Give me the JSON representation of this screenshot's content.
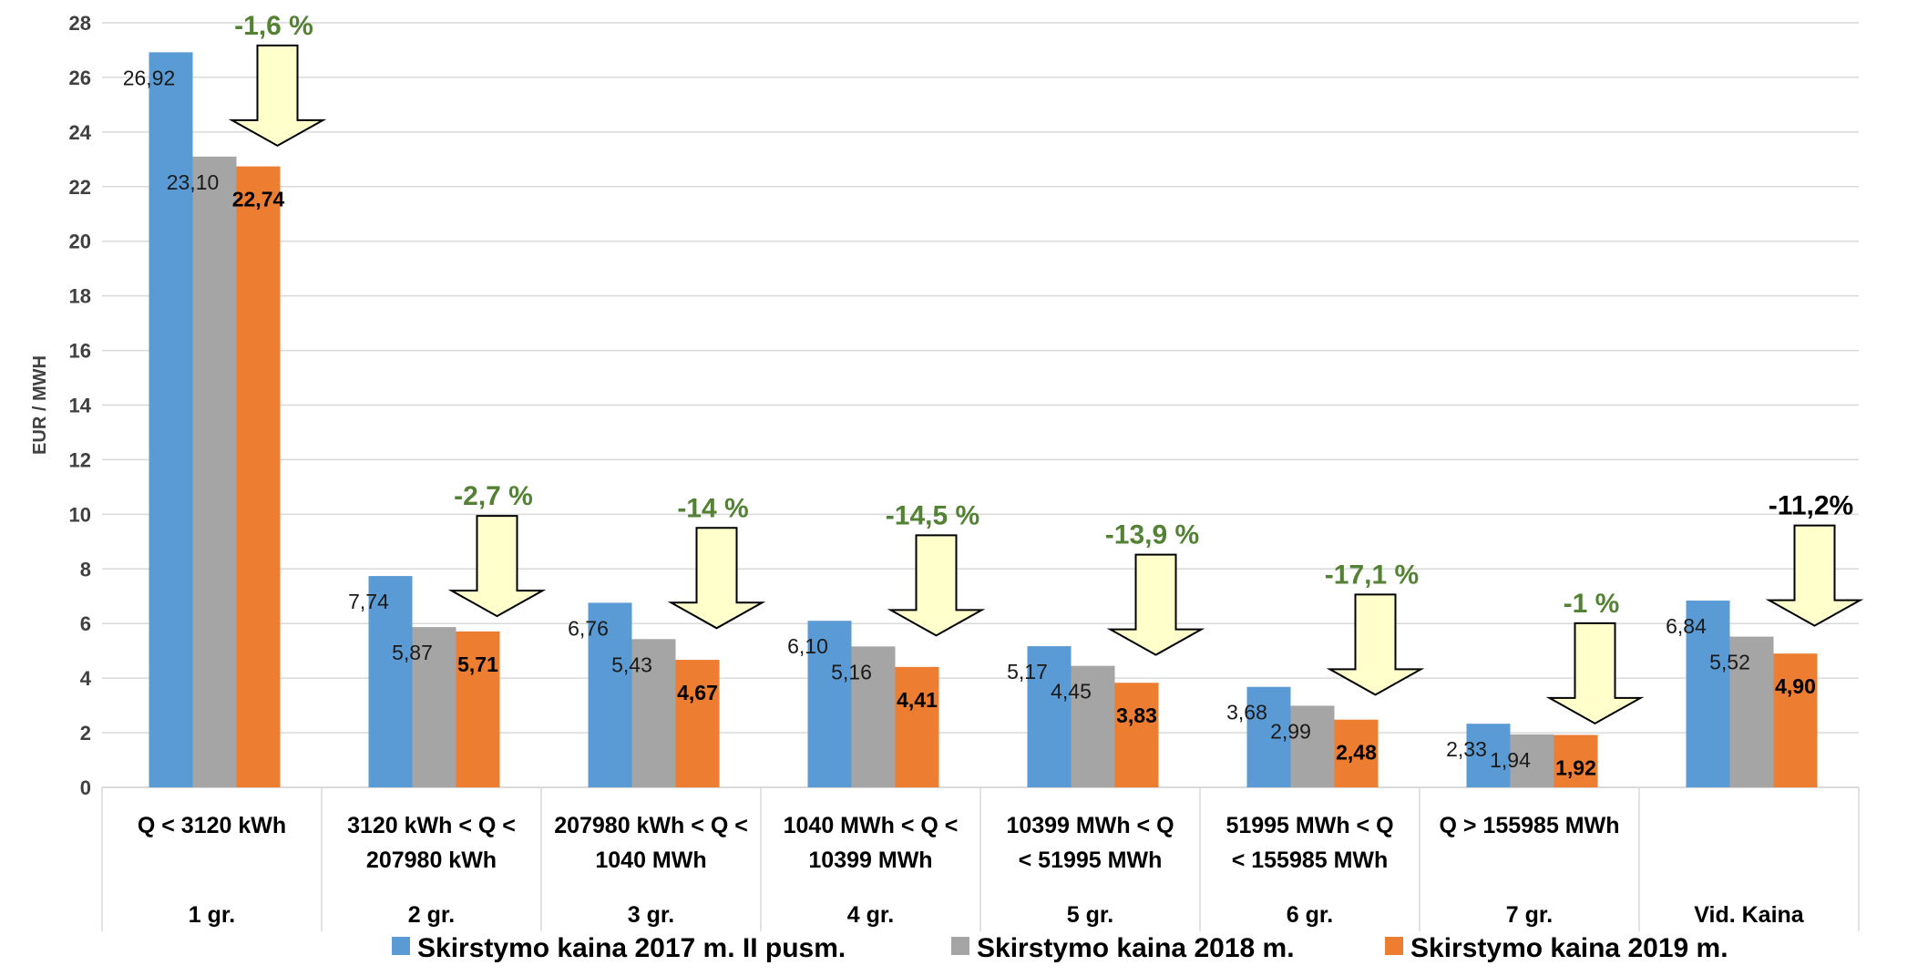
{
  "chart_data": {
    "type": "bar",
    "ylabel": "EUR / MWH",
    "ylim": [
      0,
      28
    ],
    "yticks": [
      "0",
      "2",
      "4",
      "6",
      "8",
      "10",
      "12",
      "14",
      "16",
      "18",
      "20",
      "22",
      "24",
      "26",
      "28"
    ],
    "grid": true,
    "legend_position": "bottom",
    "categories": [
      {
        "range": [
          "Q < 3120 kWh"
        ],
        "group": "1 gr."
      },
      {
        "range": [
          "3120 kWh < Q <",
          "207980 kWh"
        ],
        "group": "2 gr."
      },
      {
        "range": [
          "207980 kWh < Q <",
          "1040 MWh"
        ],
        "group": "3 gr."
      },
      {
        "range": [
          "1040 MWh < Q <",
          "10399 MWh"
        ],
        "group": "4 gr."
      },
      {
        "range": [
          "10399 MWh  < Q",
          "< 51995 MWh"
        ],
        "group": "5 gr."
      },
      {
        "range": [
          "51995 MWh < Q",
          "< 155985 MWh"
        ],
        "group": "6 gr."
      },
      {
        "range": [
          "Q > 155985 MWh"
        ],
        "group": "7 gr."
      },
      {
        "range": [],
        "group": "Vid. Kaina"
      }
    ],
    "series": [
      {
        "name": "Skirstymo kaina 2017 m. II pusm.",
        "color": "#5b9bd5",
        "values": [
          26.92,
          7.74,
          6.76,
          6.1,
          5.17,
          3.68,
          2.33,
          6.84
        ],
        "labels": [
          "26,92",
          "7,74",
          "6,76",
          "6,10",
          "5,17",
          "3,68",
          "2,33",
          "6,84"
        ]
      },
      {
        "name": "Skirstymo kaina 2018 m.",
        "color": "#a5a5a5",
        "values": [
          23.1,
          5.87,
          5.43,
          5.16,
          4.45,
          2.99,
          1.94,
          5.52
        ],
        "labels": [
          "23,10",
          "5,87",
          "5,43",
          "5,16",
          "4,45",
          "2,99",
          "1,94",
          "5,52"
        ]
      },
      {
        "name": "Skirstymo kaina 2019 m.",
        "color": "#ed7d31",
        "values": [
          22.74,
          5.71,
          4.67,
          4.41,
          3.83,
          2.48,
          1.92,
          4.9
        ],
        "labels": [
          "22,74",
          "5,71",
          "4,67",
          "4,41",
          "3,83",
          "2,48",
          "1,92",
          "4,90"
        ]
      }
    ],
    "annotations": [
      {
        "text": "-1,6 %",
        "color": "#548235"
      },
      {
        "text": "-2,7 %",
        "color": "#548235"
      },
      {
        "text": "-14 %",
        "color": "#548235"
      },
      {
        "text": "-14,5 %",
        "color": "#548235"
      },
      {
        "text": "-13,9 %",
        "color": "#548235"
      },
      {
        "text": "-17,1 %",
        "color": "#548235"
      },
      {
        "text": "-1 %",
        "color": "#548235"
      },
      {
        "text": "-11,2%",
        "color": "#000000"
      }
    ],
    "arrow_fill": "#ffffcc",
    "grid_color": "#d9d9d9"
  }
}
